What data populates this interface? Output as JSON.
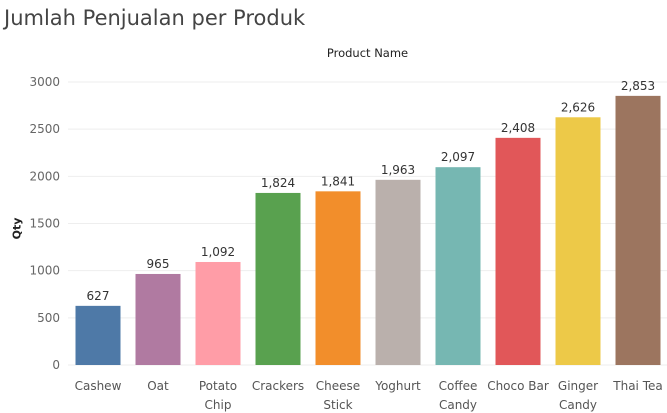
{
  "chart_data": {
    "type": "bar",
    "title": "Jumlah Penjualan per Produk",
    "header": "Product Name",
    "ylabel": "Qty",
    "xlabel": "",
    "ylim": [
      0,
      3000
    ],
    "yticks": [
      0,
      500,
      1000,
      1500,
      2000,
      2500,
      3000
    ],
    "grid": true,
    "categories": [
      [
        "Cashew"
      ],
      [
        "Oat"
      ],
      [
        "Potato",
        "Chip"
      ],
      [
        "Crackers"
      ],
      [
        "Cheese",
        "Stick"
      ],
      [
        "Yoghurt"
      ],
      [
        "Coffee",
        "Candy"
      ],
      [
        "Choco Bar"
      ],
      [
        "Ginger",
        "Candy"
      ],
      [
        "Thai Tea"
      ]
    ],
    "values": [
      627,
      965,
      1092,
      1824,
      1841,
      1963,
      2097,
      2408,
      2626,
      2853
    ],
    "value_labels": [
      "627",
      "965",
      "1,092",
      "1,824",
      "1,841",
      "1,963",
      "2,097",
      "2,408",
      "2,626",
      "2,853"
    ],
    "colors": [
      "#4e79a7",
      "#b07aa1",
      "#ff9da7",
      "#59a14f",
      "#f28e2b",
      "#bab0ac",
      "#76b7b2",
      "#e15759",
      "#edc948",
      "#9c755f"
    ]
  }
}
